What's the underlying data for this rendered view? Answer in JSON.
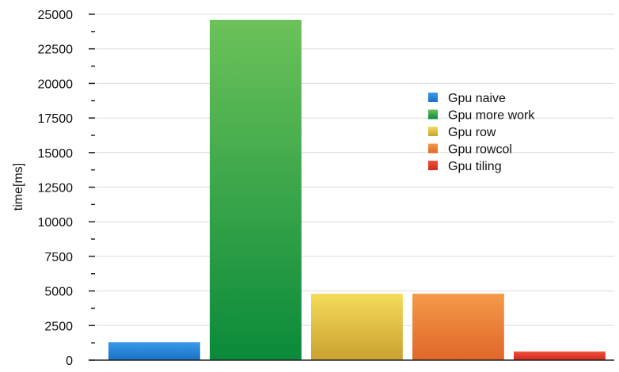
{
  "chart_data": {
    "type": "bar",
    "title": "",
    "xlabel": "",
    "ylabel": "time[ms]",
    "ylim": [
      0,
      25000
    ],
    "yticks": [
      0,
      2500,
      5000,
      7500,
      10000,
      12500,
      15000,
      17500,
      20000,
      22500,
      25000
    ],
    "grid": "horizontal",
    "legend_position": "right",
    "series": [
      {
        "name": "Gpu naive",
        "value": 1300,
        "color_top": "#3a9bea",
        "color_bottom": "#1a6fc4"
      },
      {
        "name": "Gpu more work",
        "value": 24600,
        "color_top": "#6cc25a",
        "color_bottom": "#0a8a3a"
      },
      {
        "name": "Gpu row",
        "value": 4800,
        "color_top": "#f6dc5a",
        "color_bottom": "#c9a130"
      },
      {
        "name": "Gpu rowcol",
        "value": 4800,
        "color_top": "#f49a48",
        "color_bottom": "#e0662a"
      },
      {
        "name": "Gpu tiling",
        "value": 620,
        "color_top": "#f0523a",
        "color_bottom": "#d0281e"
      }
    ]
  }
}
